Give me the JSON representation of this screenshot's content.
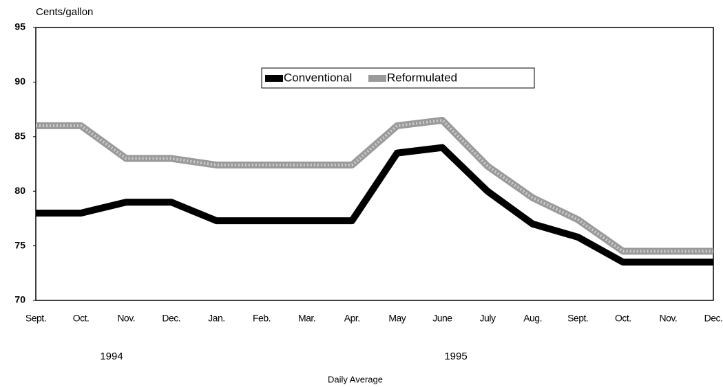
{
  "chart_data": {
    "type": "line",
    "ylabel": "Cents/gallon",
    "xlabel": "Daily Average",
    "year_labels": [
      "1994",
      "1995"
    ],
    "categories": [
      "Sept.",
      "Oct.",
      "Nov.",
      "Dec.",
      "Jan.",
      "Feb.",
      "Mar.",
      "Apr.",
      "May",
      "June",
      "July",
      "Aug.",
      "Sept.",
      "Oct.",
      "Nov.",
      "Dec."
    ],
    "series": [
      {
        "name": "Conventional",
        "color": "#000000",
        "values": [
          78,
          78,
          79,
          79,
          77.3,
          77.3,
          77.3,
          77.3,
          83.5,
          84,
          80,
          77,
          75.8,
          73.5,
          73.5,
          73.5
        ]
      },
      {
        "name": "Reformulated",
        "color": "#9a9a9a",
        "values": [
          86,
          86,
          83,
          83,
          82.4,
          82.4,
          82.4,
          82.4,
          86,
          86.5,
          82.3,
          79.4,
          77.4,
          74.5,
          74.5,
          74.5
        ]
      }
    ],
    "ylim": [
      70,
      95
    ],
    "yticks": [
      70,
      75,
      80,
      85,
      90,
      95
    ],
    "grid": false,
    "legend": "top"
  }
}
